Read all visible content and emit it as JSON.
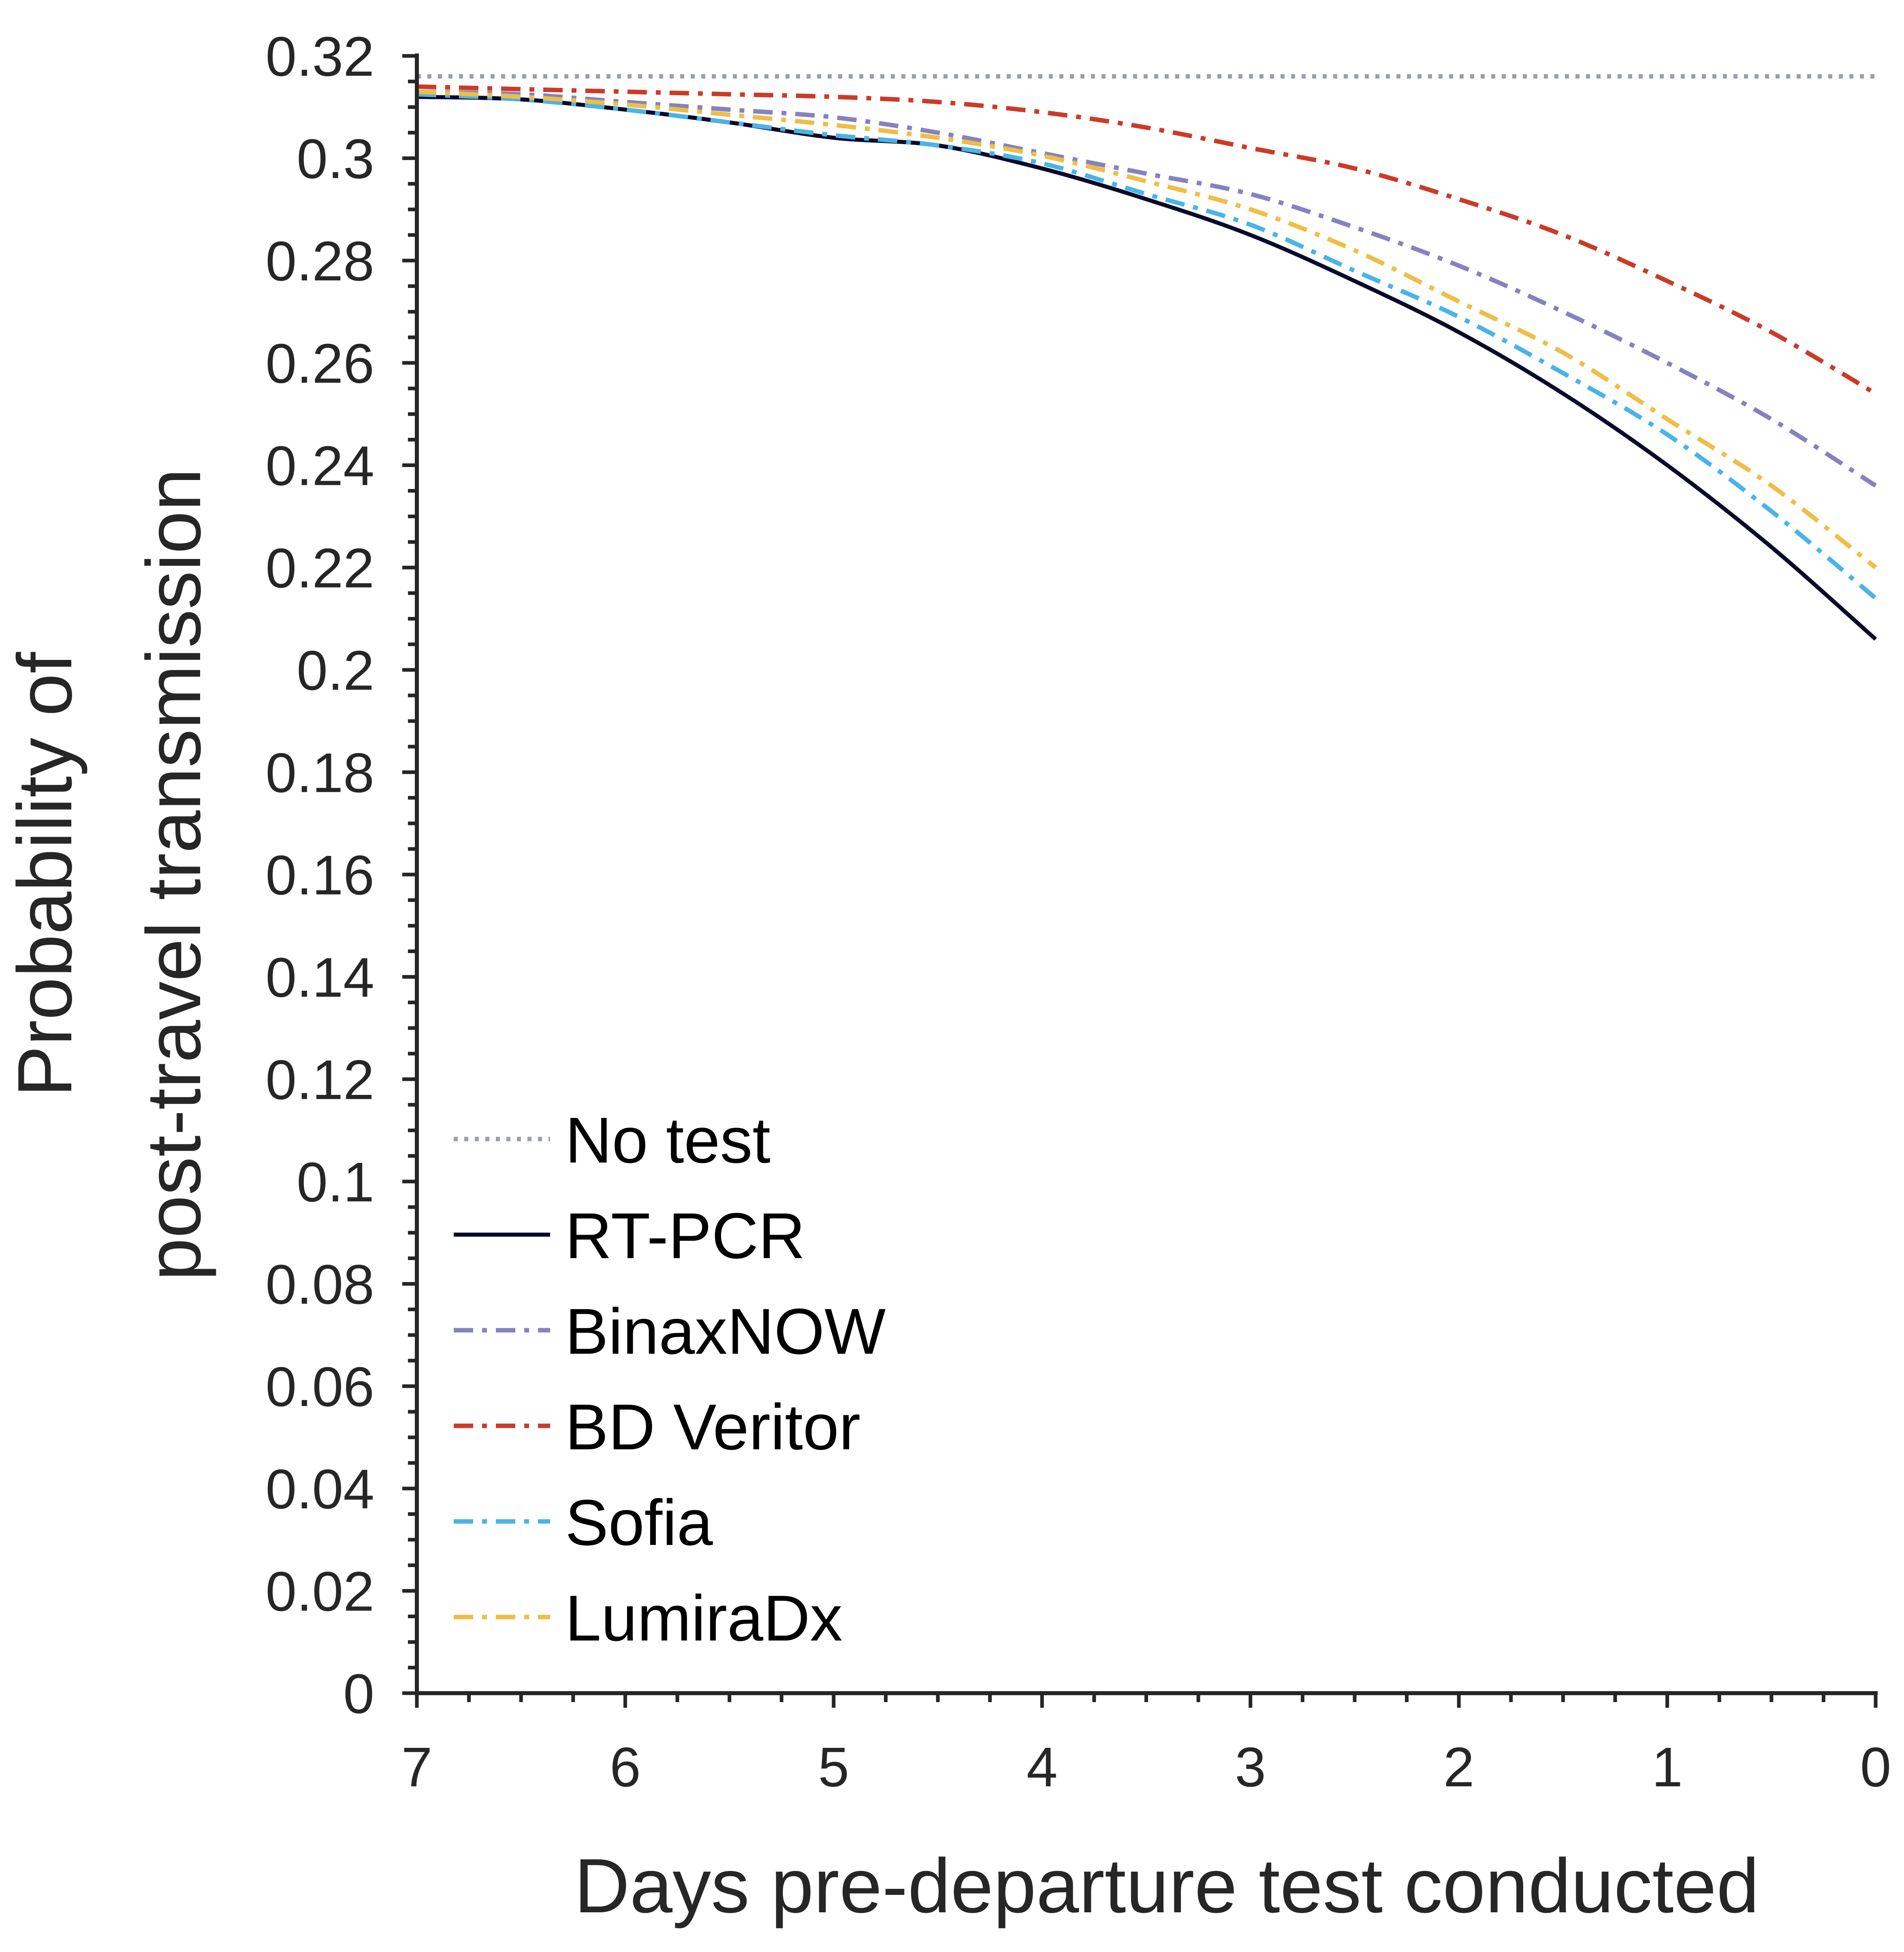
{
  "chart_data": {
    "type": "line",
    "xlabel": "Days pre-departure test conducted",
    "ylabel_lines": [
      "Probability of",
      "post-travel transmission"
    ],
    "xlim": [
      7,
      0
    ],
    "ylim": [
      0,
      0.32
    ],
    "x_ticks": [
      7,
      6,
      5,
      4,
      3,
      2,
      1,
      0
    ],
    "x_tick_labels": [
      "7",
      "6",
      "5",
      "4",
      "3",
      "2",
      "1",
      "0"
    ],
    "y_ticks": [
      0,
      0.02,
      0.04,
      0.06,
      0.08,
      0.1,
      0.12,
      0.14,
      0.16,
      0.18,
      0.2,
      0.22,
      0.24,
      0.26,
      0.28,
      0.3,
      0.32
    ],
    "y_tick_labels": [
      "0",
      "0.02",
      "0.04",
      "0.06",
      "0.08",
      "0.1",
      "0.12",
      "0.14",
      "0.16",
      "0.18",
      "0.2",
      "0.22",
      "0.24",
      "0.26",
      "0.28",
      "0.3",
      "0.32"
    ],
    "x_minor_per_major": 4,
    "y_minor_per_major": 3,
    "grid": false,
    "legend_position": "bottom-left",
    "x": [
      7,
      6.5,
      6,
      5.5,
      5,
      4.5,
      4,
      3.5,
      3,
      2.5,
      2,
      1.5,
      1,
      0.5,
      0
    ],
    "series": [
      {
        "name": "No test",
        "color": "#9a9fac",
        "dash": "dotted",
        "values": [
          0.316,
          0.316,
          0.316,
          0.316,
          0.316,
          0.316,
          0.316,
          0.316,
          0.316,
          0.316,
          0.316,
          0.316,
          0.316,
          0.316,
          0.316
        ]
      },
      {
        "name": "RT-PCR",
        "color": "#0a0a2a",
        "dash": "solid",
        "values": [
          0.312,
          0.3115,
          0.3095,
          0.307,
          0.304,
          0.3025,
          0.298,
          0.292,
          0.285,
          0.276,
          0.266,
          0.254,
          0.24,
          0.224,
          0.206
        ]
      },
      {
        "name": "BinaxNOW",
        "color": "#8682c0",
        "dash": "dashdot",
        "values": [
          0.313,
          0.3125,
          0.311,
          0.3095,
          0.308,
          0.305,
          0.301,
          0.297,
          0.293,
          0.2865,
          0.279,
          0.27,
          0.26,
          0.249,
          0.236
        ]
      },
      {
        "name": "BD Veritor",
        "color": "#cc3a28",
        "dash": "dashdot",
        "values": [
          0.314,
          0.3135,
          0.313,
          0.3125,
          0.312,
          0.311,
          0.309,
          0.306,
          0.302,
          0.298,
          0.292,
          0.285,
          0.276,
          0.266,
          0.254
        ]
      },
      {
        "name": "Sofia",
        "color": "#4ab4e6",
        "dash": "dashdot",
        "values": [
          0.3125,
          0.3115,
          0.3095,
          0.307,
          0.3045,
          0.3025,
          0.299,
          0.293,
          0.287,
          0.278,
          0.269,
          0.258,
          0.246,
          0.231,
          0.214
        ]
      },
      {
        "name": "LumiraDx",
        "color": "#f0bd45",
        "dash": "dashdot",
        "values": [
          0.313,
          0.312,
          0.3105,
          0.3085,
          0.3065,
          0.304,
          0.3005,
          0.2955,
          0.29,
          0.282,
          0.272,
          0.262,
          0.249,
          0.236,
          0.22
        ]
      }
    ]
  }
}
